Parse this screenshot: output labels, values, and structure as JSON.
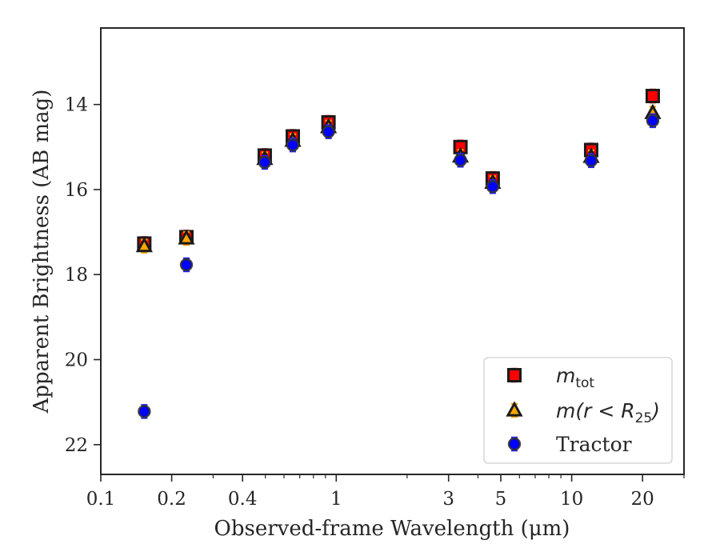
{
  "chart_data": {
    "type": "scatter",
    "xlabel": "Observed-frame Wavelength (μm)",
    "ylabel": "Apparent Brightness (AB mag)",
    "x_scale": "log",
    "xlim": [
      0.1,
      30
    ],
    "ylim": [
      22.7,
      12.2
    ],
    "y_inverted": true,
    "grid": false,
    "legend_position": "lower-right",
    "x_major_ticks": [
      {
        "value": 0.1,
        "label": "0.1"
      },
      {
        "value": 0.2,
        "label": "0.2"
      },
      {
        "value": 0.4,
        "label": "0.4"
      },
      {
        "value": 1,
        "label": "1"
      },
      {
        "value": 3,
        "label": "3"
      },
      {
        "value": 5,
        "label": "5"
      },
      {
        "value": 10,
        "label": "10"
      },
      {
        "value": 20,
        "label": "20"
      }
    ],
    "x_minor_ticks": [
      0.3,
      0.5,
      0.6,
      0.7,
      0.8,
      0.9,
      2,
      4,
      6,
      7,
      8,
      9,
      30
    ],
    "y_ticks": [
      {
        "value": 14,
        "label": "14"
      },
      {
        "value": 16,
        "label": "16"
      },
      {
        "value": 18,
        "label": "18"
      },
      {
        "value": 20,
        "label": "20"
      },
      {
        "value": 22,
        "label": "22"
      }
    ],
    "series": [
      {
        "name": "m_tot",
        "legend": {
          "main": "m",
          "sub": "tot"
        },
        "marker": "square",
        "color": "#ff0000",
        "errorbar_color": "#ff0000",
        "x": [
          0.153,
          0.231,
          0.497,
          0.654,
          0.927,
          3.37,
          4.62,
          12.1,
          22.1
        ],
        "y": [
          17.27,
          17.12,
          15.2,
          14.75,
          14.42,
          15.0,
          15.74,
          15.07,
          13.8
        ]
      },
      {
        "name": "m(r<R_25)",
        "legend": {
          "main": "m(r < R",
          "sub": "25",
          "end": ")"
        },
        "marker": "triangle",
        "color": "#ffa500",
        "errorbar_color": "#ffa500",
        "x": [
          0.153,
          0.231,
          0.497,
          0.654,
          0.927,
          3.37,
          4.62,
          12.1,
          22.1
        ],
        "y": [
          17.33,
          17.15,
          15.28,
          14.85,
          14.53,
          15.22,
          15.84,
          15.23,
          14.2
        ]
      },
      {
        "name": "Tractor",
        "legend": {
          "main": "Tractor"
        },
        "marker": "circle",
        "color": "#0000ff",
        "errorbar_color": "#2020ff",
        "x": [
          0.153,
          0.231,
          0.497,
          0.654,
          0.927,
          3.37,
          4.62,
          12.1,
          22.1
        ],
        "y": [
          21.22,
          17.77,
          15.36,
          14.95,
          14.64,
          15.31,
          15.93,
          15.32,
          14.38
        ]
      }
    ]
  }
}
